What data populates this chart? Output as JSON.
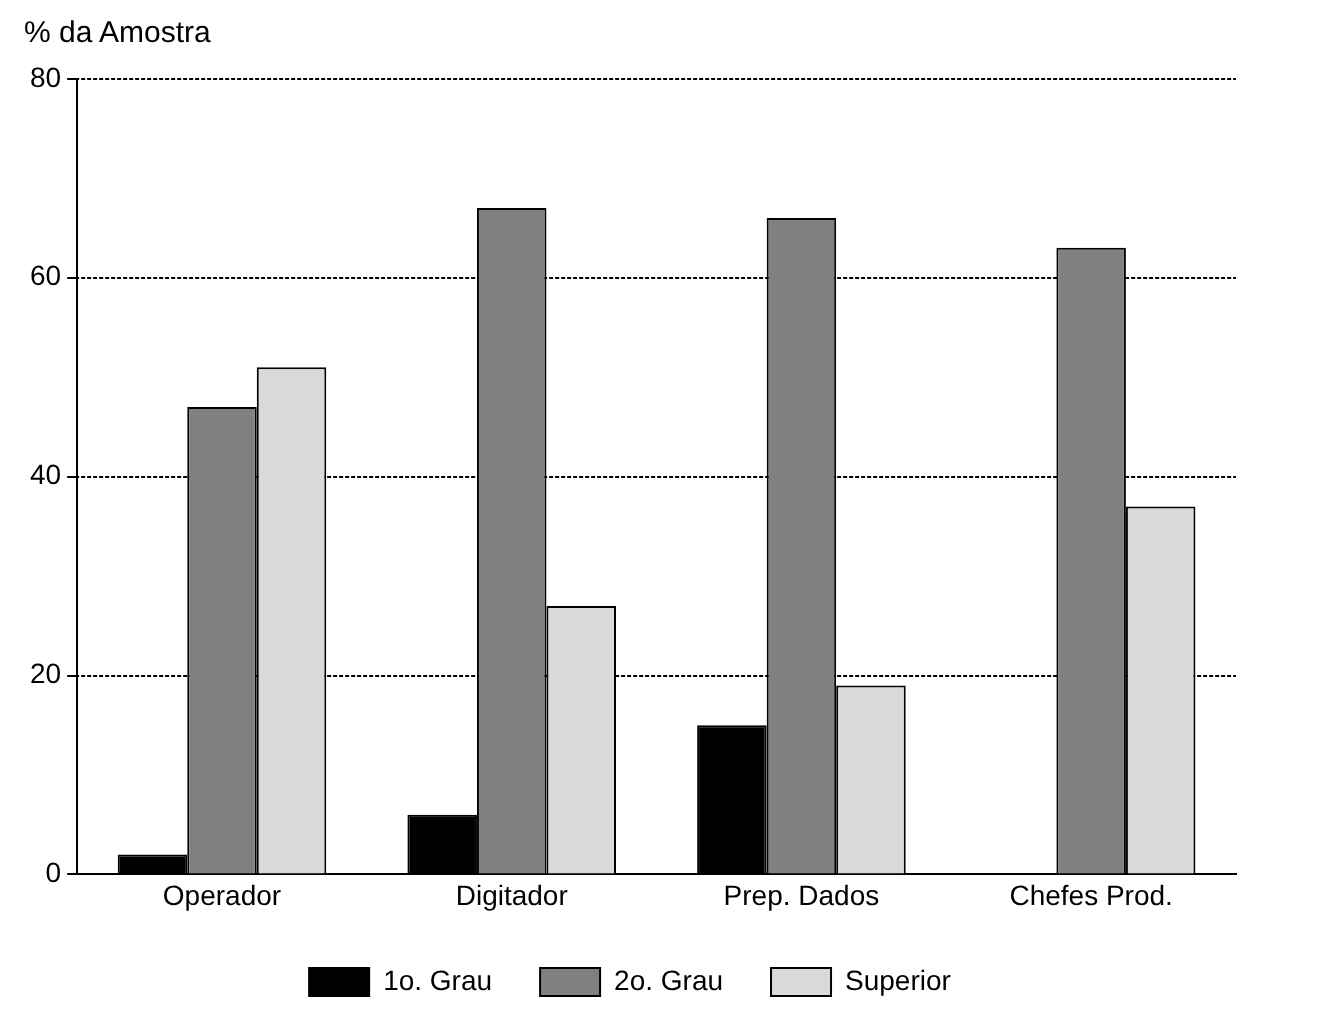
{
  "chart_data": {
    "type": "bar",
    "ylabel": "% da Amostra",
    "categories": [
      "Operador",
      "Digitador",
      "Prep. Dados",
      "Chefes Prod."
    ],
    "series": [
      {
        "name": "1o. Grau",
        "color": "#000000",
        "values": [
          2,
          6,
          15,
          null
        ]
      },
      {
        "name": "2o. Grau",
        "color": "#808080",
        "values": [
          47,
          67,
          66,
          63
        ]
      },
      {
        "name": "Superior",
        "color": "#d9d9d9",
        "values": [
          51,
          27,
          19,
          37
        ]
      }
    ],
    "ylim": [
      0,
      80
    ],
    "yticks": [
      0,
      20,
      40,
      60,
      80
    ],
    "grid": "y",
    "legend": "bottom"
  }
}
